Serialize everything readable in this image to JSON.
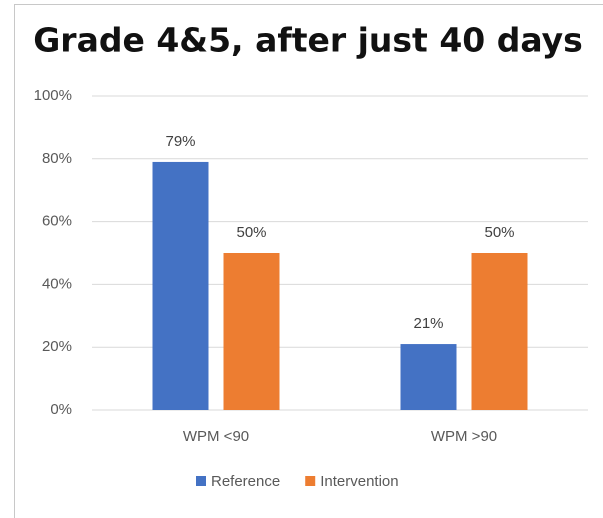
{
  "chart_data": {
    "type": "bar",
    "title": "Grade 4&5, after just 40 days",
    "categories": [
      "WPM <90",
      "WPM >90"
    ],
    "series": [
      {
        "name": "Reference",
        "color": "#4472c4",
        "values": [
          79,
          21
        ],
        "value_labels": [
          "79%",
          "21%"
        ]
      },
      {
        "name": "Intervention",
        "color": "#ed7d31",
        "values": [
          50,
          50
        ],
        "value_labels": [
          "50%",
          "50%"
        ]
      }
    ],
    "ylim": [
      0,
      100
    ],
    "yticks": [
      {
        "value": 0,
        "label": "0%"
      },
      {
        "value": 20,
        "label": "20%"
      },
      {
        "value": 40,
        "label": "40%"
      },
      {
        "value": 60,
        "label": "60%"
      },
      {
        "value": 80,
        "label": "80%"
      },
      {
        "value": 100,
        "label": "100%"
      }
    ],
    "grid": true,
    "legend": "bottom"
  }
}
